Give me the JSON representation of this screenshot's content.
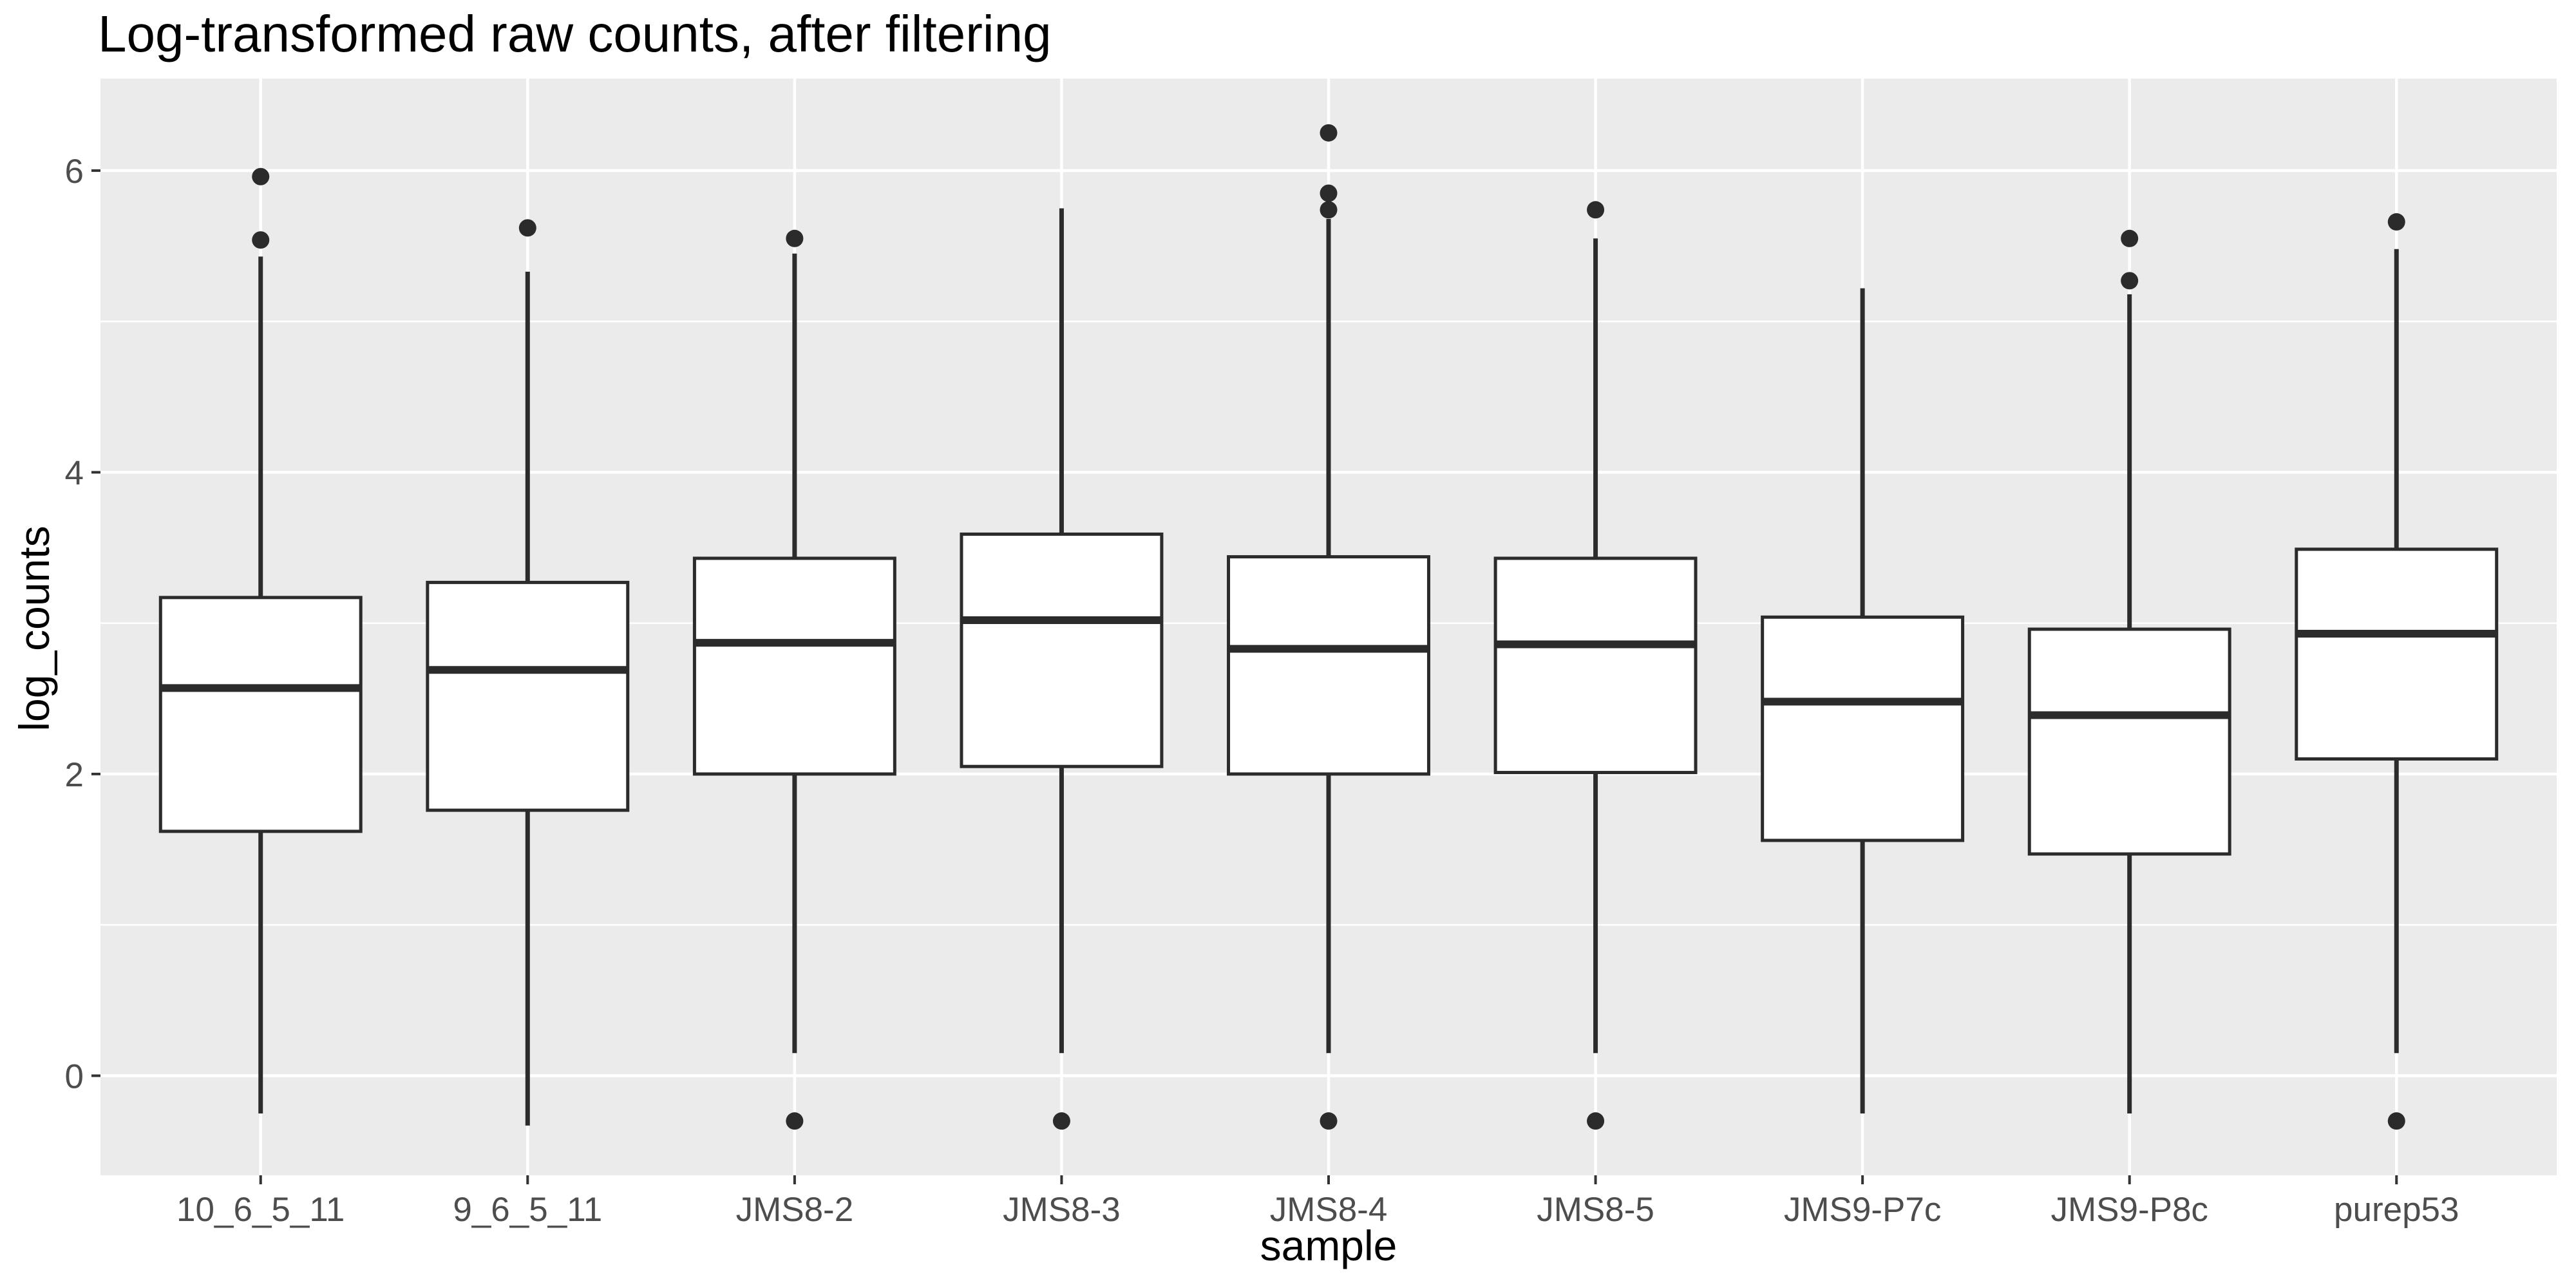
{
  "chart_data": {
    "type": "boxplot",
    "title": "Log-transformed raw counts, after filtering",
    "xlabel": "sample",
    "ylabel": "log_counts",
    "legend": "none",
    "grid": "major-and-minor-white-on-grey-panel",
    "ylim": [
      -0.66,
      6.61
    ],
    "y_ticks": [
      0,
      2,
      4,
      6
    ],
    "y_minor_ticks": [
      1,
      3,
      5
    ],
    "categories": [
      "10_6_5_11",
      "9_6_5_11",
      "JMS8-2",
      "JMS8-3",
      "JMS8-4",
      "JMS8-5",
      "JMS9-P7c",
      "JMS9-P8c",
      "purep53"
    ],
    "series": [
      {
        "name": "10_6_5_11",
        "whisker_low": -0.25,
        "q1": 1.62,
        "median": 2.57,
        "q3": 3.17,
        "whisker_high": 5.43,
        "outliers": [
          5.54,
          5.96
        ]
      },
      {
        "name": "9_6_5_11",
        "whisker_low": -0.33,
        "q1": 1.76,
        "median": 2.69,
        "q3": 3.27,
        "whisker_high": 5.33,
        "outliers": [
          5.62
        ]
      },
      {
        "name": "JMS8-2",
        "whisker_low": 0.15,
        "q1": 2.0,
        "median": 2.87,
        "q3": 3.43,
        "whisker_high": 5.45,
        "outliers": [
          5.55,
          -0.3
        ]
      },
      {
        "name": "JMS8-3",
        "whisker_low": 0.15,
        "q1": 2.05,
        "median": 3.02,
        "q3": 3.59,
        "whisker_high": 5.75,
        "outliers": [
          -0.3
        ]
      },
      {
        "name": "JMS8-4",
        "whisker_low": 0.15,
        "q1": 2.0,
        "median": 2.83,
        "q3": 3.44,
        "whisker_high": 5.68,
        "outliers": [
          6.25,
          5.85,
          5.74,
          -0.3
        ]
      },
      {
        "name": "JMS8-5",
        "whisker_low": 0.15,
        "q1": 2.01,
        "median": 2.86,
        "q3": 3.43,
        "whisker_high": 5.55,
        "outliers": [
          5.74,
          -0.3
        ]
      },
      {
        "name": "JMS9-P7c",
        "whisker_low": -0.25,
        "q1": 1.56,
        "median": 2.48,
        "q3": 3.04,
        "whisker_high": 5.22,
        "outliers": []
      },
      {
        "name": "JMS9-P8c",
        "whisker_low": -0.25,
        "q1": 1.47,
        "median": 2.39,
        "q3": 2.96,
        "whisker_high": 5.18,
        "outliers": [
          5.55,
          5.27
        ]
      },
      {
        "name": "purep53",
        "whisker_low": 0.15,
        "q1": 2.1,
        "median": 2.93,
        "q3": 3.49,
        "whisker_high": 5.48,
        "outliers": [
          5.66,
          -0.3
        ]
      }
    ],
    "colors": {
      "panel_background": "#EBEBEB",
      "grid_major": "#FFFFFF",
      "grid_minor": "#FFFFFF",
      "box_stroke": "#2B2B2B",
      "box_fill": "#FFFFFF",
      "outlier_fill": "#2B2B2B",
      "tick_mark": "#333333",
      "tick_label": "#4D4D4D",
      "axis_title": "#000000",
      "title": "#000000",
      "plot_background": "#FFFFFF"
    }
  }
}
